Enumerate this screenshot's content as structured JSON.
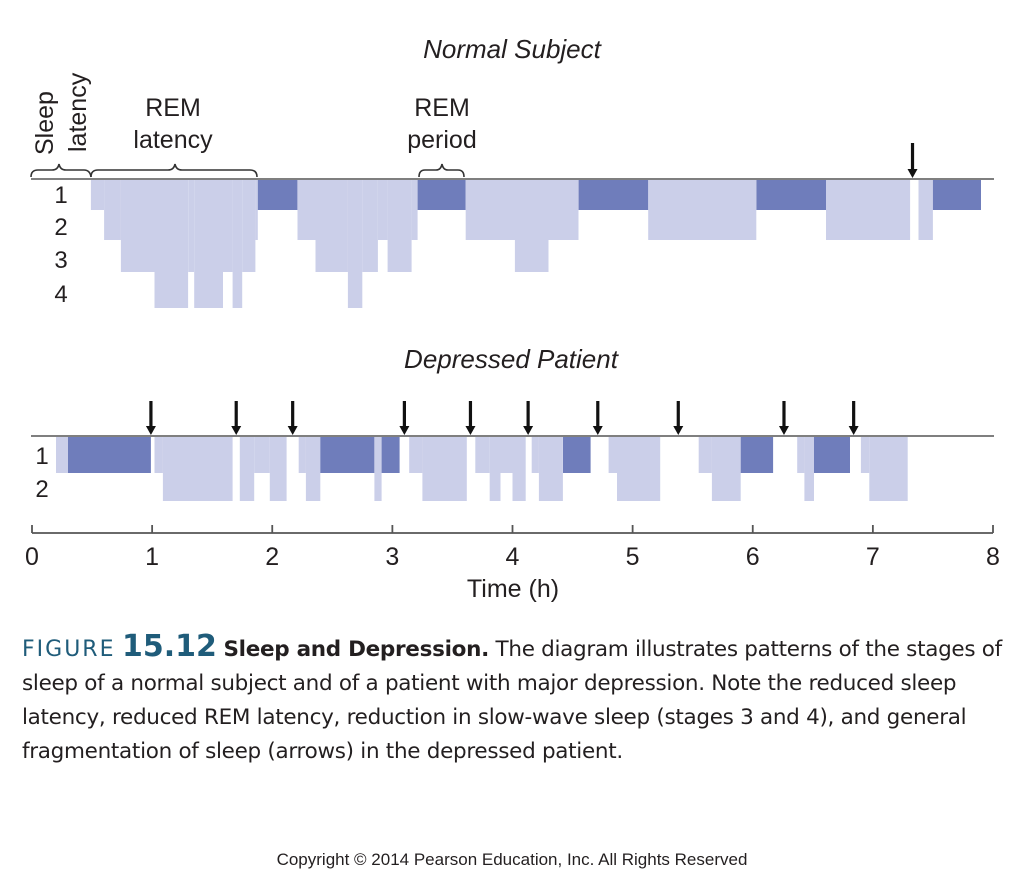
{
  "colors": {
    "nrem": "#cbcfe9",
    "rem": "#6f7dbb",
    "line": "#555555",
    "arrow": "#111111",
    "figure_accent": "#1f5c7a"
  },
  "chart_data": [
    {
      "type": "hypnogram",
      "title": "Normal Subject",
      "stage_labels": [
        "1",
        "2",
        "3",
        "4"
      ],
      "annotations": {
        "sleep_latency": "Sleep latency",
        "sleep_latency_lines": [
          "Sleep",
          "latency"
        ],
        "rem_latency_lines": [
          "REM",
          "latency"
        ],
        "rem_period_lines": [
          "REM",
          "period"
        ]
      },
      "xlim": [
        0,
        8
      ],
      "segments": [
        {
          "start": 0.49,
          "end": 0.6,
          "stage": 1
        },
        {
          "start": 0.6,
          "end": 0.74,
          "stage": 2
        },
        {
          "start": 0.74,
          "end": 1.02,
          "stage": 3
        },
        {
          "start": 1.02,
          "end": 1.3,
          "stage": 4
        },
        {
          "start": 1.3,
          "end": 1.35,
          "stage": 3
        },
        {
          "start": 1.35,
          "end": 1.59,
          "stage": 4
        },
        {
          "start": 1.59,
          "end": 1.67,
          "stage": 3
        },
        {
          "start": 1.67,
          "end": 1.75,
          "stage": 4
        },
        {
          "start": 1.75,
          "end": 1.86,
          "stage": 3
        },
        {
          "start": 1.86,
          "end": 1.88,
          "stage": 2
        },
        {
          "start": 1.88,
          "end": 2.21,
          "stage": "REM"
        },
        {
          "start": 2.21,
          "end": 2.36,
          "stage": 2
        },
        {
          "start": 2.36,
          "end": 2.63,
          "stage": 3
        },
        {
          "start": 2.63,
          "end": 2.75,
          "stage": 4
        },
        {
          "start": 2.75,
          "end": 2.88,
          "stage": 3
        },
        {
          "start": 2.88,
          "end": 2.96,
          "stage": 2
        },
        {
          "start": 2.96,
          "end": 3.16,
          "stage": 3
        },
        {
          "start": 3.16,
          "end": 3.21,
          "stage": 2
        },
        {
          "start": 3.21,
          "end": 3.61,
          "stage": "REM"
        },
        {
          "start": 3.61,
          "end": 4.02,
          "stage": 2
        },
        {
          "start": 4.02,
          "end": 4.3,
          "stage": 3
        },
        {
          "start": 4.3,
          "end": 4.55,
          "stage": 2
        },
        {
          "start": 4.55,
          "end": 5.13,
          "stage": "REM"
        },
        {
          "start": 5.13,
          "end": 6.03,
          "stage": 2
        },
        {
          "start": 6.03,
          "end": 6.61,
          "stage": "REM"
        },
        {
          "start": 6.61,
          "end": 7.31,
          "stage": 2
        },
        {
          "start": 7.38,
          "end": 7.5,
          "stage": 2
        },
        {
          "start": 7.5,
          "end": 7.9,
          "stage": "REM"
        }
      ],
      "arrows": [
        7.33
      ]
    },
    {
      "type": "hypnogram",
      "title": "Depressed Patient",
      "stage_labels": [
        "1",
        "2"
      ],
      "xlim": [
        0,
        8
      ],
      "segments": [
        {
          "start": 0.2,
          "end": 0.3,
          "stage": 1
        },
        {
          "start": 0.3,
          "end": 0.99,
          "stage": "REM"
        },
        {
          "start": 1.02,
          "end": 1.09,
          "stage": 1
        },
        {
          "start": 1.09,
          "end": 1.67,
          "stage": 2
        },
        {
          "start": 1.73,
          "end": 1.85,
          "stage": 2
        },
        {
          "start": 1.85,
          "end": 1.98,
          "stage": 1
        },
        {
          "start": 1.98,
          "end": 2.12,
          "stage": 2
        },
        {
          "start": 2.22,
          "end": 2.28,
          "stage": 1
        },
        {
          "start": 2.28,
          "end": 2.4,
          "stage": 2
        },
        {
          "start": 2.4,
          "end": 2.85,
          "stage": "REM"
        },
        {
          "start": 2.85,
          "end": 2.91,
          "stage": 2
        },
        {
          "start": 2.91,
          "end": 3.06,
          "stage": "REM"
        },
        {
          "start": 3.14,
          "end": 3.25,
          "stage": 1
        },
        {
          "start": 3.25,
          "end": 3.62,
          "stage": 2
        },
        {
          "start": 3.69,
          "end": 3.81,
          "stage": 1
        },
        {
          "start": 3.81,
          "end": 3.9,
          "stage": 2
        },
        {
          "start": 3.9,
          "end": 4.0,
          "stage": 1
        },
        {
          "start": 4.0,
          "end": 4.11,
          "stage": 2
        },
        {
          "start": 4.16,
          "end": 4.22,
          "stage": 1
        },
        {
          "start": 4.22,
          "end": 4.42,
          "stage": 2
        },
        {
          "start": 4.42,
          "end": 4.65,
          "stage": "REM"
        },
        {
          "start": 4.8,
          "end": 4.87,
          "stage": 1
        },
        {
          "start": 4.87,
          "end": 5.23,
          "stage": 2
        },
        {
          "start": 5.55,
          "end": 5.66,
          "stage": 1
        },
        {
          "start": 5.66,
          "end": 5.9,
          "stage": 2
        },
        {
          "start": 5.9,
          "end": 6.17,
          "stage": "REM"
        },
        {
          "start": 6.37,
          "end": 6.43,
          "stage": 1
        },
        {
          "start": 6.43,
          "end": 6.51,
          "stage": 2
        },
        {
          "start": 6.51,
          "end": 6.81,
          "stage": "REM"
        },
        {
          "start": 6.9,
          "end": 6.97,
          "stage": 1
        },
        {
          "start": 6.97,
          "end": 7.29,
          "stage": 2
        }
      ],
      "arrows": [
        0.99,
        1.7,
        2.17,
        3.1,
        3.65,
        4.13,
        4.71,
        5.38,
        6.26,
        6.84
      ]
    }
  ],
  "x_axis": {
    "label": "Time (h)",
    "ticks": [
      "0",
      "1",
      "2",
      "3",
      "4",
      "5",
      "6",
      "7",
      "8"
    ],
    "range": [
      0,
      8
    ]
  },
  "caption": {
    "figure_word": "FIGURE",
    "figure_number": "15.12",
    "title": "Sleep and Depression.",
    "body": "The diagram illustrates patterns of the stages of sleep of a normal subject and of a patient with major depression. Note the reduced sleep latency, reduced REM latency, reduction in slow-wave sleep (stages 3 and 4), and general fragmentation of sleep (arrows) in the depressed patient."
  },
  "copyright": "Copyright © 2014 Pearson Education, Inc. All Rights Reserved"
}
